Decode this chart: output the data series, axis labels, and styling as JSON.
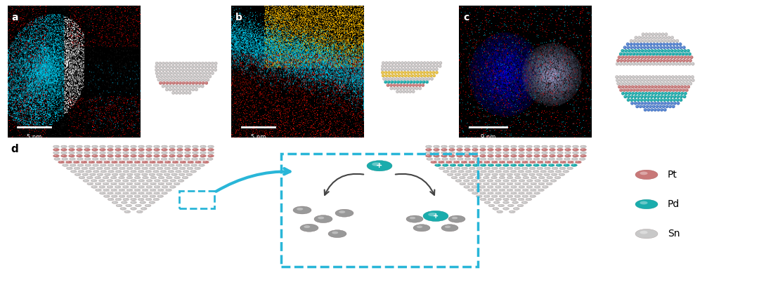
{
  "bg_color": "#ffffff",
  "pt_color": "#c87878",
  "pd_color": "#1aacac",
  "sn_color": "#b0b0b0",
  "sn_light_color": "#c8c8c8",
  "sn_dark_color": "#999999",
  "yellow_color": "#e8c040",
  "blue_color": "#5080d0",
  "cyan_dash": "#29b6d8",
  "panel_labels": [
    "a",
    "b",
    "c",
    "d"
  ],
  "legend_labels": [
    "Pt",
    "Pd",
    "Sn"
  ],
  "scale_labels": [
    "5 nm",
    "5 nm",
    "9 nm"
  ]
}
